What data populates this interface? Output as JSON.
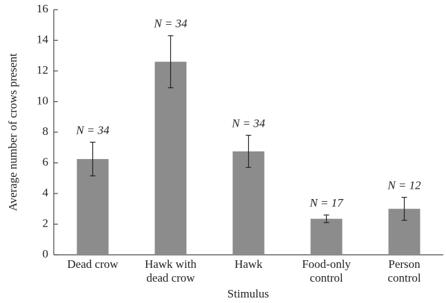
{
  "chart_data": {
    "type": "bar",
    "categories": [
      [
        "Dead crow"
      ],
      [
        "Hawk with",
        "dead crow"
      ],
      [
        "Hawk"
      ],
      [
        "Food-only",
        "control"
      ],
      [
        "Person",
        "control"
      ]
    ],
    "values": [
      6.25,
      12.6,
      6.75,
      2.35,
      3.0
    ],
    "errors": [
      1.1,
      1.7,
      1.05,
      0.25,
      0.75
    ],
    "annotations": [
      "N = 34",
      "N = 34",
      "N = 34",
      "N = 17",
      "N = 12"
    ],
    "color": "#8c8c8c",
    "xlabel": "Stimulus",
    "ylabel": "Average number of crows present",
    "ylim": [
      0,
      16
    ],
    "yticks": [
      0,
      2,
      4,
      6,
      8,
      10,
      12,
      14,
      16
    ],
    "grid": false
  }
}
